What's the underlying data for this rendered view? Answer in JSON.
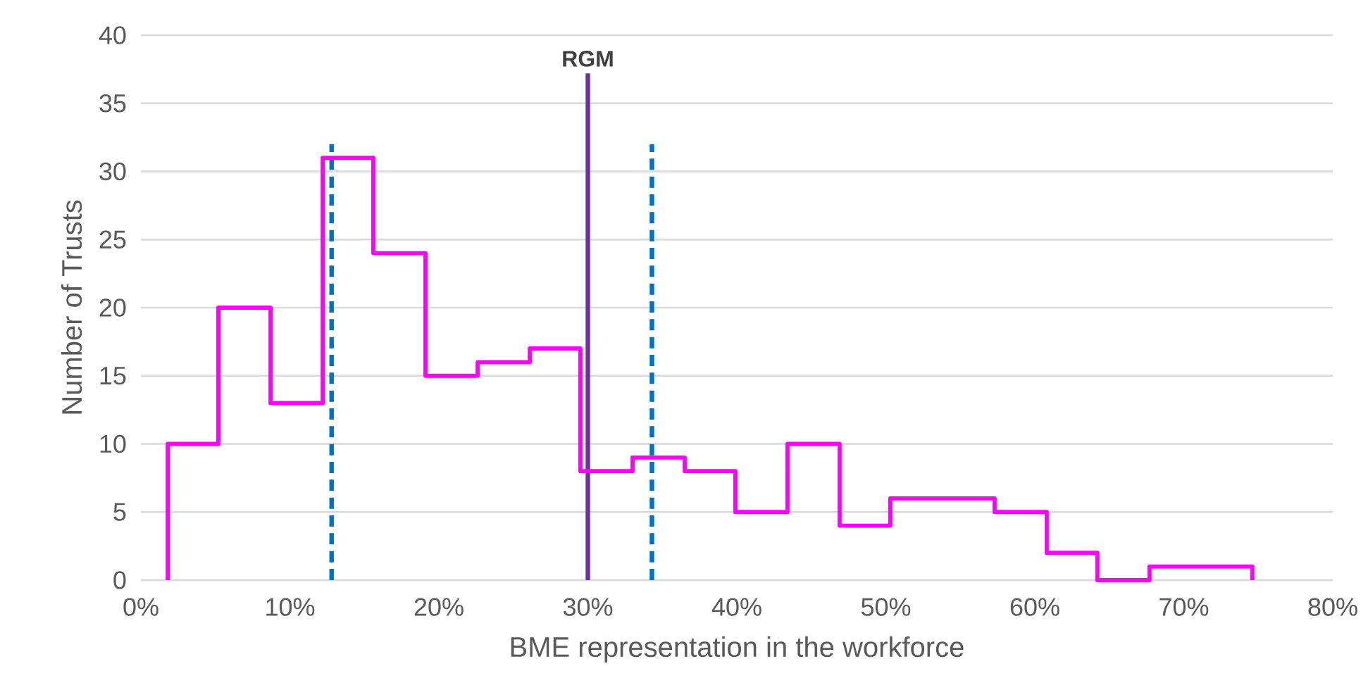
{
  "chart_data": {
    "type": "histogram",
    "xlabel": "BME representation in the workforce",
    "ylabel": "Number of Trusts",
    "bins": [
      1.8,
      5.2,
      8.7,
      12.2,
      15.6,
      19.1,
      22.6,
      26.1,
      29.5,
      33.0,
      36.5,
      39.9,
      43.4,
      46.9,
      50.3,
      53.8,
      57.3,
      60.8,
      64.2,
      67.7,
      71.2,
      74.6
    ],
    "values": [
      10,
      20,
      13,
      31,
      24,
      15,
      16,
      17,
      8,
      9,
      8,
      5,
      10,
      4,
      6,
      6,
      5,
      2,
      0,
      1,
      1
    ],
    "color": "#ff00ff",
    "xlim": [
      0,
      80
    ],
    "ylim": [
      0,
      40
    ],
    "xticks": [
      {
        "value": 0,
        "label": "0%"
      },
      {
        "value": 10,
        "label": "10%"
      },
      {
        "value": 20,
        "label": "20%"
      },
      {
        "value": 30,
        "label": "30%"
      },
      {
        "value": 40,
        "label": "40%"
      },
      {
        "value": 50,
        "label": "50%"
      },
      {
        "value": 60,
        "label": "60%"
      },
      {
        "value": 70,
        "label": "70%"
      },
      {
        "value": 80,
        "label": "80%"
      }
    ],
    "yticks": [
      0,
      5,
      10,
      15,
      20,
      25,
      30,
      35,
      40
    ],
    "grid": "y",
    "ref_lines": [
      {
        "axis": "x",
        "value": 12.8,
        "color": "#0070c0",
        "line_style": "dashed"
      },
      {
        "axis": "x",
        "value": 30.0,
        "color": "#7030a0",
        "line_style": "solid",
        "label": "RGM"
      },
      {
        "axis": "x",
        "value": 34.3,
        "color": "#0070c0",
        "line_style": "dashed"
      }
    ]
  }
}
